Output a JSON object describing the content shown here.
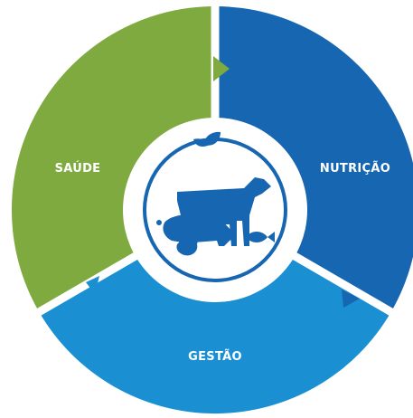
{
  "segments": [
    {
      "label": "SAÚDE"
    },
    {
      "label": "NUTRIÇÃO"
    },
    {
      "label": "GESTÃO"
    }
  ]
}
